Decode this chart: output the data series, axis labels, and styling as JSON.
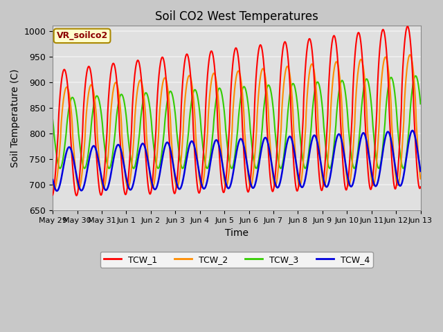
{
  "title": "Soil CO2 West Temperatures",
  "ylabel": "Soil Temperature (C)",
  "xlabel": "Time",
  "ylim": [
    650,
    1010
  ],
  "yticks": [
    650,
    700,
    750,
    800,
    850,
    900,
    950,
    1000
  ],
  "x_labels": [
    "May 29",
    "May 30",
    "May 31",
    "Jun 1",
    "Jun 2",
    "Jun 3",
    "Jun 4",
    "Jun 5",
    "Jun 6",
    "Jun 7",
    "Jun 8",
    "Jun 9",
    "Jun 10",
    "Jun 11",
    "Jun 12",
    "Jun 13"
  ],
  "legend_labels": [
    "TCW_1",
    "TCW_2",
    "TCW_3",
    "TCW_4"
  ],
  "legend_colors": [
    "#ff0000",
    "#ff8c00",
    "#33cc00",
    "#0000dd"
  ],
  "annotation_text": "VR_soilco2",
  "annotation_facecolor": "#ffffcc",
  "annotation_edgecolor": "#aa8800",
  "plot_bg_color": "#e0e0e0",
  "fig_bg_color": "#c8c8c8",
  "grid_color": "#f0f0f0",
  "title_fontsize": 12,
  "label_fontsize": 10,
  "tick_fontsize": 9
}
